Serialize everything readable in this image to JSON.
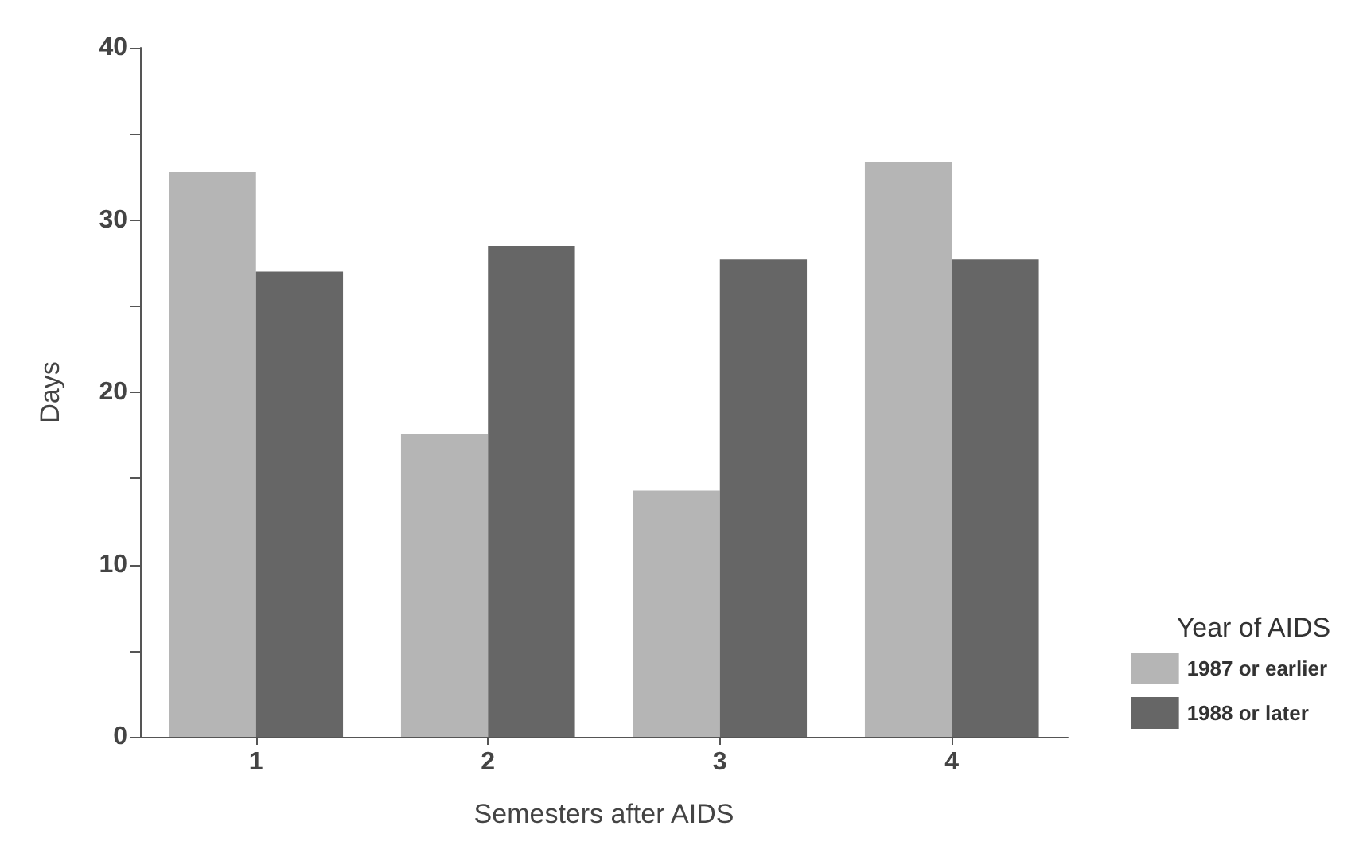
{
  "chart_data": {
    "type": "bar",
    "xlabel": "Semesters after AIDS",
    "ylabel": "Days",
    "legend_title": "Year of AIDS",
    "categories": [
      "1",
      "2",
      "3",
      "4"
    ],
    "series": [
      {
        "name": "1987 or earlier",
        "color": "#b5b5b5",
        "values": [
          32.8,
          17.6,
          14.3,
          33.4
        ]
      },
      {
        "name": "1988 or later",
        "color": "#666666",
        "values": [
          27.0,
          28.5,
          27.7,
          27.7
        ]
      }
    ],
    "ylim": [
      0,
      40
    ],
    "yticks": [
      0,
      {
        "value": 5,
        "label": null
      },
      10,
      {
        "value": 15,
        "label": null
      },
      20,
      {
        "value": 25,
        "label": null
      },
      30,
      {
        "value": 35,
        "label": null
      },
      40
    ],
    "grid": false,
    "legend": "bottom right"
  }
}
